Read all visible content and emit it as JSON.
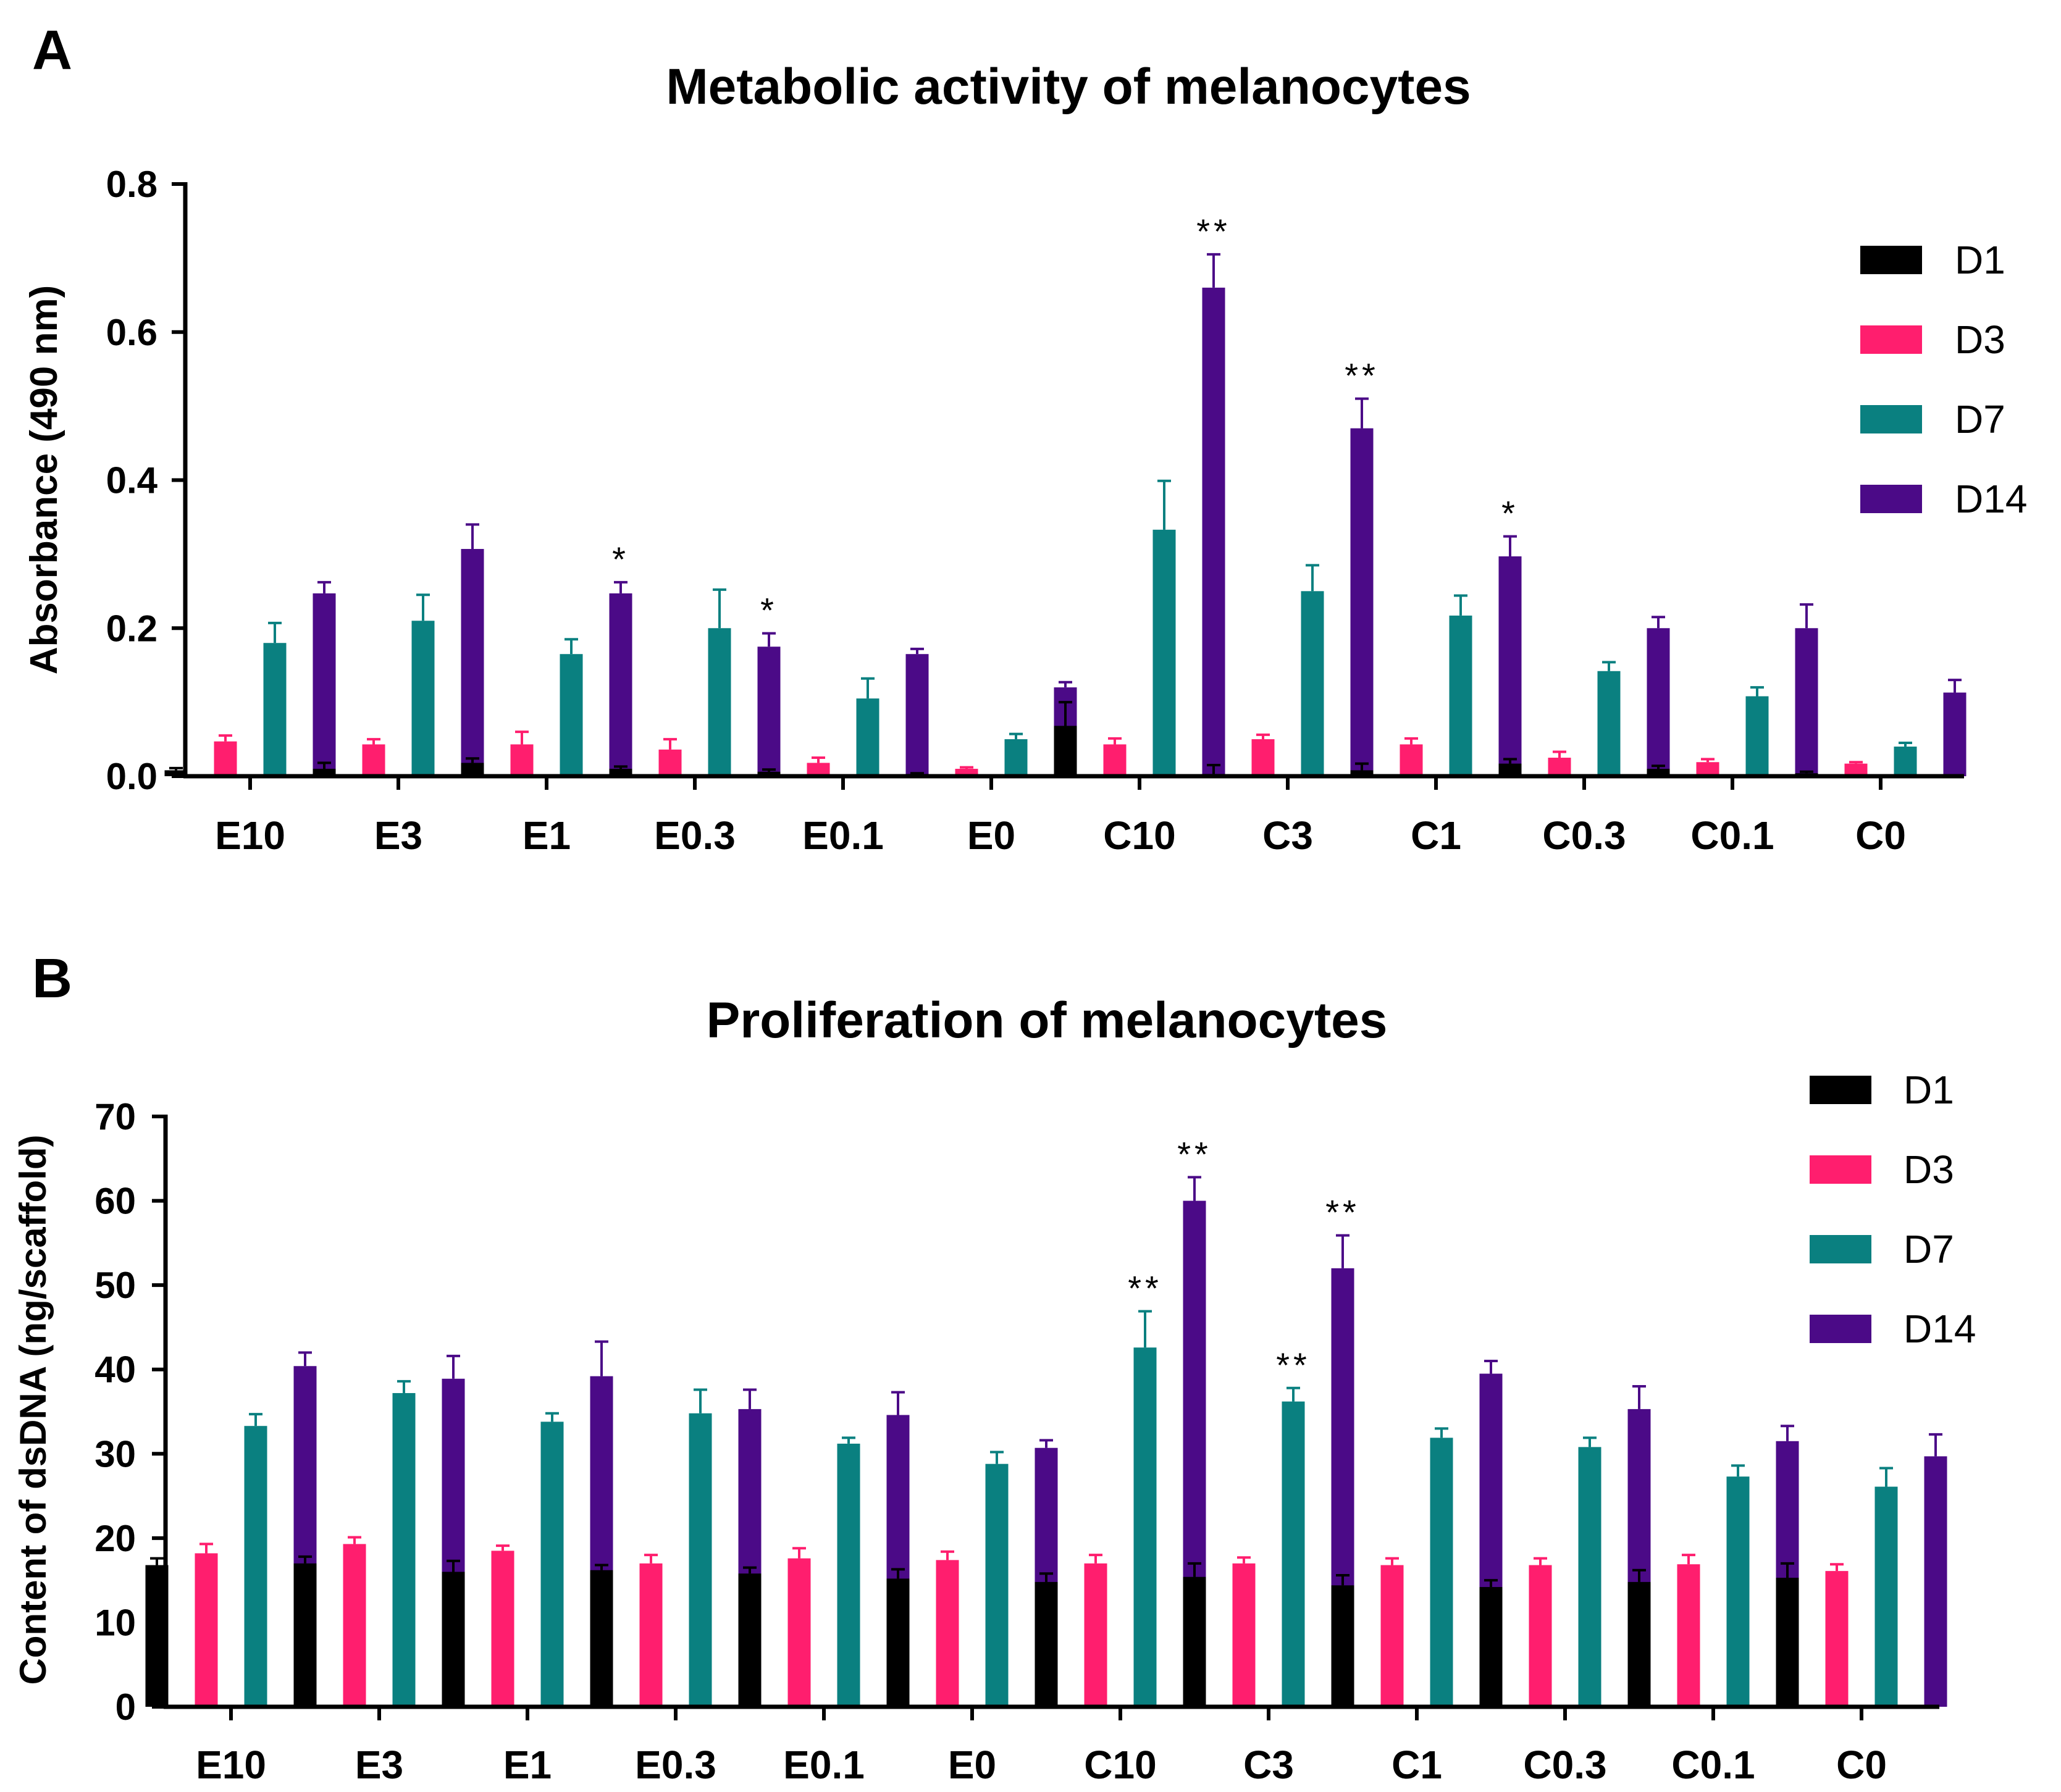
{
  "chart_data": [
    {
      "panel": "A",
      "type": "bar",
      "title": "Metabolic activity of melanocytes",
      "xlabel": "",
      "ylabel": "Absorbance (490 nm)",
      "ylim": [
        0,
        0.8
      ],
      "yticks": [
        0,
        0.2,
        0.4,
        0.6,
        0.8
      ],
      "ytick_labels": [
        "0.0",
        "0.2",
        "0.4",
        "0.6",
        "0.8"
      ],
      "categories": [
        "E10",
        "E3",
        "E1",
        "E0.3",
        "E0.1",
        "E0",
        "C10",
        "C3",
        "C1",
        "C0.3",
        "C0.1",
        "C0"
      ],
      "series": [
        {
          "name": "D1",
          "color": "#000000",
          "values": [
            0.008,
            0.01,
            0.018,
            0.01,
            0.006,
            0.003,
            0.068,
            0.003,
            0.008,
            0.017,
            0.01,
            0.004
          ],
          "errors": [
            0.003,
            0.008,
            0.006,
            0.003,
            0.003,
            0.001,
            0.032,
            0.012,
            0.009,
            0.006,
            0.004,
            0.002
          ],
          "signif": [
            "",
            "",
            "",
            "",
            "",
            "",
            "",
            "",
            "",
            "",
            "",
            ""
          ]
        },
        {
          "name": "D3",
          "color": "#ff1e6e",
          "values": [
            0.047,
            0.043,
            0.043,
            0.036,
            0.018,
            0.01,
            0.043,
            0.05,
            0.043,
            0.025,
            0.019,
            0.017
          ],
          "errors": [
            0.008,
            0.007,
            0.017,
            0.014,
            0.007,
            0.002,
            0.008,
            0.006,
            0.008,
            0.008,
            0.004,
            0.002
          ],
          "signif": [
            "",
            "",
            "",
            "",
            "",
            "",
            "",
            "",
            "",
            "",
            "",
            ""
          ]
        },
        {
          "name": "D7",
          "color": "#0a8080",
          "values": [
            0.18,
            0.21,
            0.165,
            0.2,
            0.105,
            0.05,
            0.333,
            0.25,
            0.217,
            0.142,
            0.108,
            0.04
          ],
          "errors": [
            0.027,
            0.035,
            0.02,
            0.052,
            0.027,
            0.007,
            0.066,
            0.035,
            0.027,
            0.012,
            0.012,
            0.005
          ],
          "signif": [
            "",
            "",
            "",
            "",
            "",
            "",
            "",
            "",
            "",
            "",
            "",
            ""
          ]
        },
        {
          "name": "D14",
          "color": "#4b0a87",
          "values": [
            0.247,
            0.307,
            0.247,
            0.175,
            0.165,
            0.12,
            0.66,
            0.47,
            0.297,
            0.2,
            0.2,
            0.113
          ],
          "errors": [
            0.015,
            0.033,
            0.015,
            0.018,
            0.007,
            0.007,
            0.045,
            0.04,
            0.027,
            0.015,
            0.032,
            0.017
          ],
          "signif": [
            "",
            "",
            "*",
            "*",
            "",
            "",
            "**",
            "**",
            "*",
            "",
            "",
            ""
          ]
        }
      ],
      "legend": "top-right"
    },
    {
      "panel": "B",
      "type": "bar",
      "title": "Proliferation of melanocytes",
      "xlabel": "",
      "ylabel": "Content of dsDNA (ng/scaffold)",
      "ylim": [
        0,
        70
      ],
      "yticks": [
        0,
        10,
        20,
        30,
        40,
        50,
        60,
        70
      ],
      "ytick_labels": [
        "0",
        "10",
        "20",
        "30",
        "40",
        "50",
        "60",
        "70"
      ],
      "categories": [
        "E10",
        "E3",
        "E1",
        "E0.3",
        "E0.1",
        "E0",
        "C10",
        "C3",
        "C1",
        "C0.3",
        "C0.1",
        "C0"
      ],
      "series": [
        {
          "name": "D1",
          "color": "#000000",
          "values": [
            16.8,
            17.0,
            16.0,
            16.2,
            15.8,
            15.2,
            14.8,
            15.4,
            14.4,
            14.2,
            14.8,
            15.3
          ],
          "errors": [
            0.8,
            0.8,
            1.3,
            0.6,
            0.7,
            1.1,
            1.0,
            1.6,
            1.2,
            0.8,
            1.4,
            1.7
          ],
          "signif": [
            "",
            "",
            "",
            "",
            "",
            "",
            "",
            "",
            "",
            "",
            "",
            ""
          ]
        },
        {
          "name": "D3",
          "color": "#ff1e6e",
          "values": [
            18.2,
            19.3,
            18.5,
            17.0,
            17.6,
            17.4,
            17.0,
            17.0,
            16.8,
            16.8,
            16.9,
            16.1
          ],
          "errors": [
            1.1,
            0.8,
            0.6,
            1.0,
            1.2,
            1.0,
            1.0,
            0.7,
            0.8,
            0.8,
            1.1,
            0.8
          ],
          "signif": [
            "",
            "",
            "",
            "",
            "",
            "",
            "",
            "",
            "",
            "",
            "",
            ""
          ]
        },
        {
          "name": "D7",
          "color": "#0a8080",
          "values": [
            33.3,
            37.2,
            33.8,
            34.8,
            31.2,
            28.8,
            42.6,
            36.2,
            31.9,
            30.8,
            27.3,
            26.1
          ],
          "errors": [
            1.4,
            1.4,
            1.0,
            2.8,
            0.7,
            1.4,
            4.3,
            1.6,
            1.1,
            1.1,
            1.3,
            2.2
          ],
          "signif": [
            "",
            "",
            "",
            "",
            "",
            "",
            "**",
            "**",
            "",
            "",
            "",
            ""
          ]
        },
        {
          "name": "D14",
          "color": "#4b0a87",
          "values": [
            40.4,
            38.9,
            39.2,
            35.3,
            34.6,
            30.7,
            60.0,
            52.0,
            39.5,
            35.3,
            31.5,
            29.7
          ],
          "errors": [
            1.6,
            2.7,
            4.1,
            2.3,
            2.7,
            0.9,
            2.8,
            3.9,
            1.5,
            2.7,
            1.8,
            2.6
          ],
          "signif": [
            "",
            "",
            "",
            "",
            "",
            "",
            "**",
            "**",
            "",
            "",
            "",
            ""
          ]
        }
      ],
      "legend": "top-right"
    }
  ]
}
